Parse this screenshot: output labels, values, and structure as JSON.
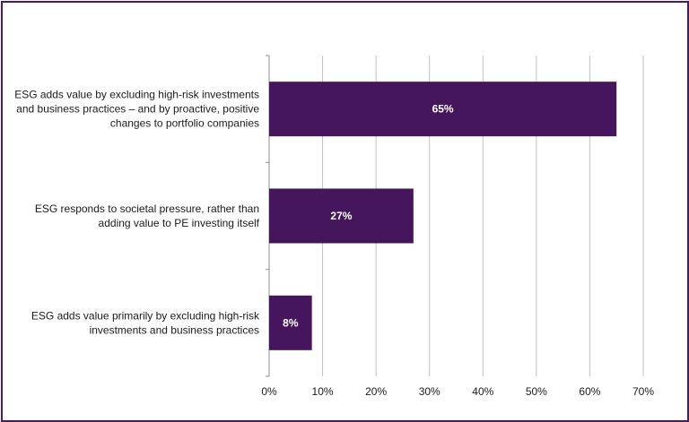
{
  "chart_data": {
    "type": "bar",
    "orientation": "horizontal",
    "categories": [
      [
        "ESG adds value by excluding high-risk investments",
        "and business practices – and by proactive, positive",
        "changes to portfolio companies"
      ],
      [
        "ESG responds to societal pressure, rather than",
        "adding value to PE investing itself"
      ],
      [
        "ESG adds value primarily by excluding high-risk",
        "investments and business practices"
      ]
    ],
    "values": [
      65,
      27,
      8
    ],
    "value_labels": [
      "65%",
      "27%",
      "8%"
    ],
    "x_ticks": [
      "0%",
      "10%",
      "20%",
      "30%",
      "40%",
      "50%",
      "60%",
      "70%"
    ],
    "xlim": [
      0,
      70
    ],
    "grid": "vertical",
    "colors": {
      "bar": "#46165c",
      "grid": "#bfbfbf",
      "border": "#4a1b62",
      "bar_text": "#ffffff"
    }
  }
}
